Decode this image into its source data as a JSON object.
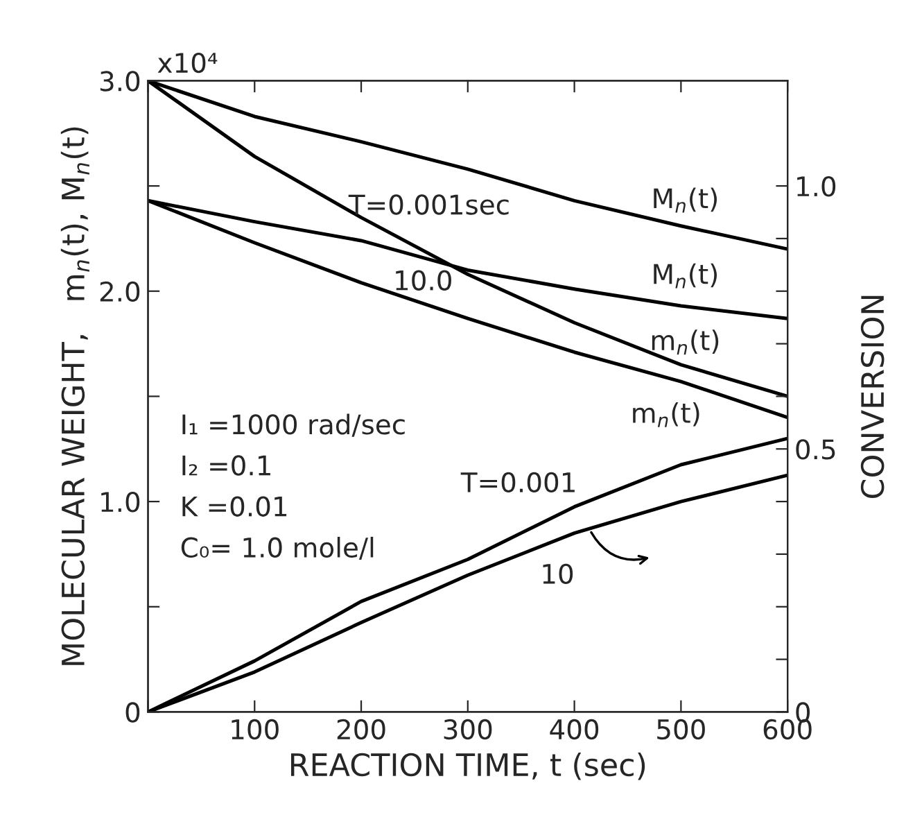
{
  "chart_data": {
    "type": "line",
    "xlabel": "REACTION TIME, t (sec)",
    "ylabel": "MOLECULAR WEIGHT,   m$_{n}$(t), M$_{n}$(t)",
    "y2label": "CONVERSION",
    "x": [
      0,
      100,
      200,
      300,
      400,
      500,
      600
    ],
    "series": [
      {
        "color": "#000000",
        "values": [
          3.0,
          2.83,
          2.71,
          2.58,
          2.43,
          2.31,
          2.2
        ]
      },
      {
        "color": "#000000",
        "values": [
          3.0,
          2.64,
          2.35,
          2.08,
          1.85,
          1.65,
          1.5
        ]
      },
      {
        "color": "#000000",
        "values": [
          2.43,
          2.33,
          2.24,
          2.1,
          2.01,
          1.93,
          1.87
        ]
      },
      {
        "color": "#000000",
        "values": [
          2.43,
          2.23,
          2.04,
          1.87,
          1.71,
          1.57,
          1.4
        ]
      },
      {
        "color": "#000000",
        "axis": "y2",
        "values": [
          0,
          0.097,
          0.21,
          0.29,
          0.39,
          0.47,
          0.52
        ]
      },
      {
        "color": "#000000",
        "axis": "y2",
        "values": [
          0,
          0.076,
          0.17,
          0.26,
          0.34,
          0.4,
          0.45
        ]
      }
    ],
    "line_style": "solid",
    "xlim": [
      0,
      600
    ],
    "xticks": [
      {
        "value": 0,
        "label": null
      },
      100,
      200,
      300,
      400,
      500,
      600
    ],
    "ylim": [
      0,
      3.0
    ],
    "yticks": [
      0,
      {
        "value": 0.5,
        "label": null
      },
      {
        "value": 1,
        "label": "1.0"
      },
      {
        "value": 1.5,
        "label": null
      },
      {
        "value": 2,
        "label": "2.0"
      },
      {
        "value": 2.5,
        "label": null
      },
      {
        "value": 3,
        "label": "3.0"
      }
    ],
    "y2lim": [
      0,
      1.2
    ],
    "y2ticks": [
      0,
      {
        "value": 0.1,
        "label": null
      },
      {
        "value": 0.2,
        "label": null
      },
      {
        "value": 0.3,
        "label": null
      },
      {
        "value": 0.4,
        "label": null
      },
      0.5,
      {
        "value": 0.6,
        "label": null
      },
      {
        "value": 0.7,
        "label": null
      },
      {
        "value": 0.8,
        "label": null
      },
      {
        "value": 0.9,
        "label": null
      },
      {
        "value": 1,
        "label": "1.0"
      }
    ],
    "annotations": [
      "x10⁴",
      "T=0.001sec",
      "10.0",
      "M$_{n}$(t)",
      "M$_{n}$(t)",
      "m$_{n}$(t)",
      "m$_{n}$(t)",
      "T=0.001",
      "10",
      "I₁ =1000 rad/sec",
      "I₂ =0.1",
      "K =0.01",
      "C₀= 1.0 mole/l"
    ]
  }
}
